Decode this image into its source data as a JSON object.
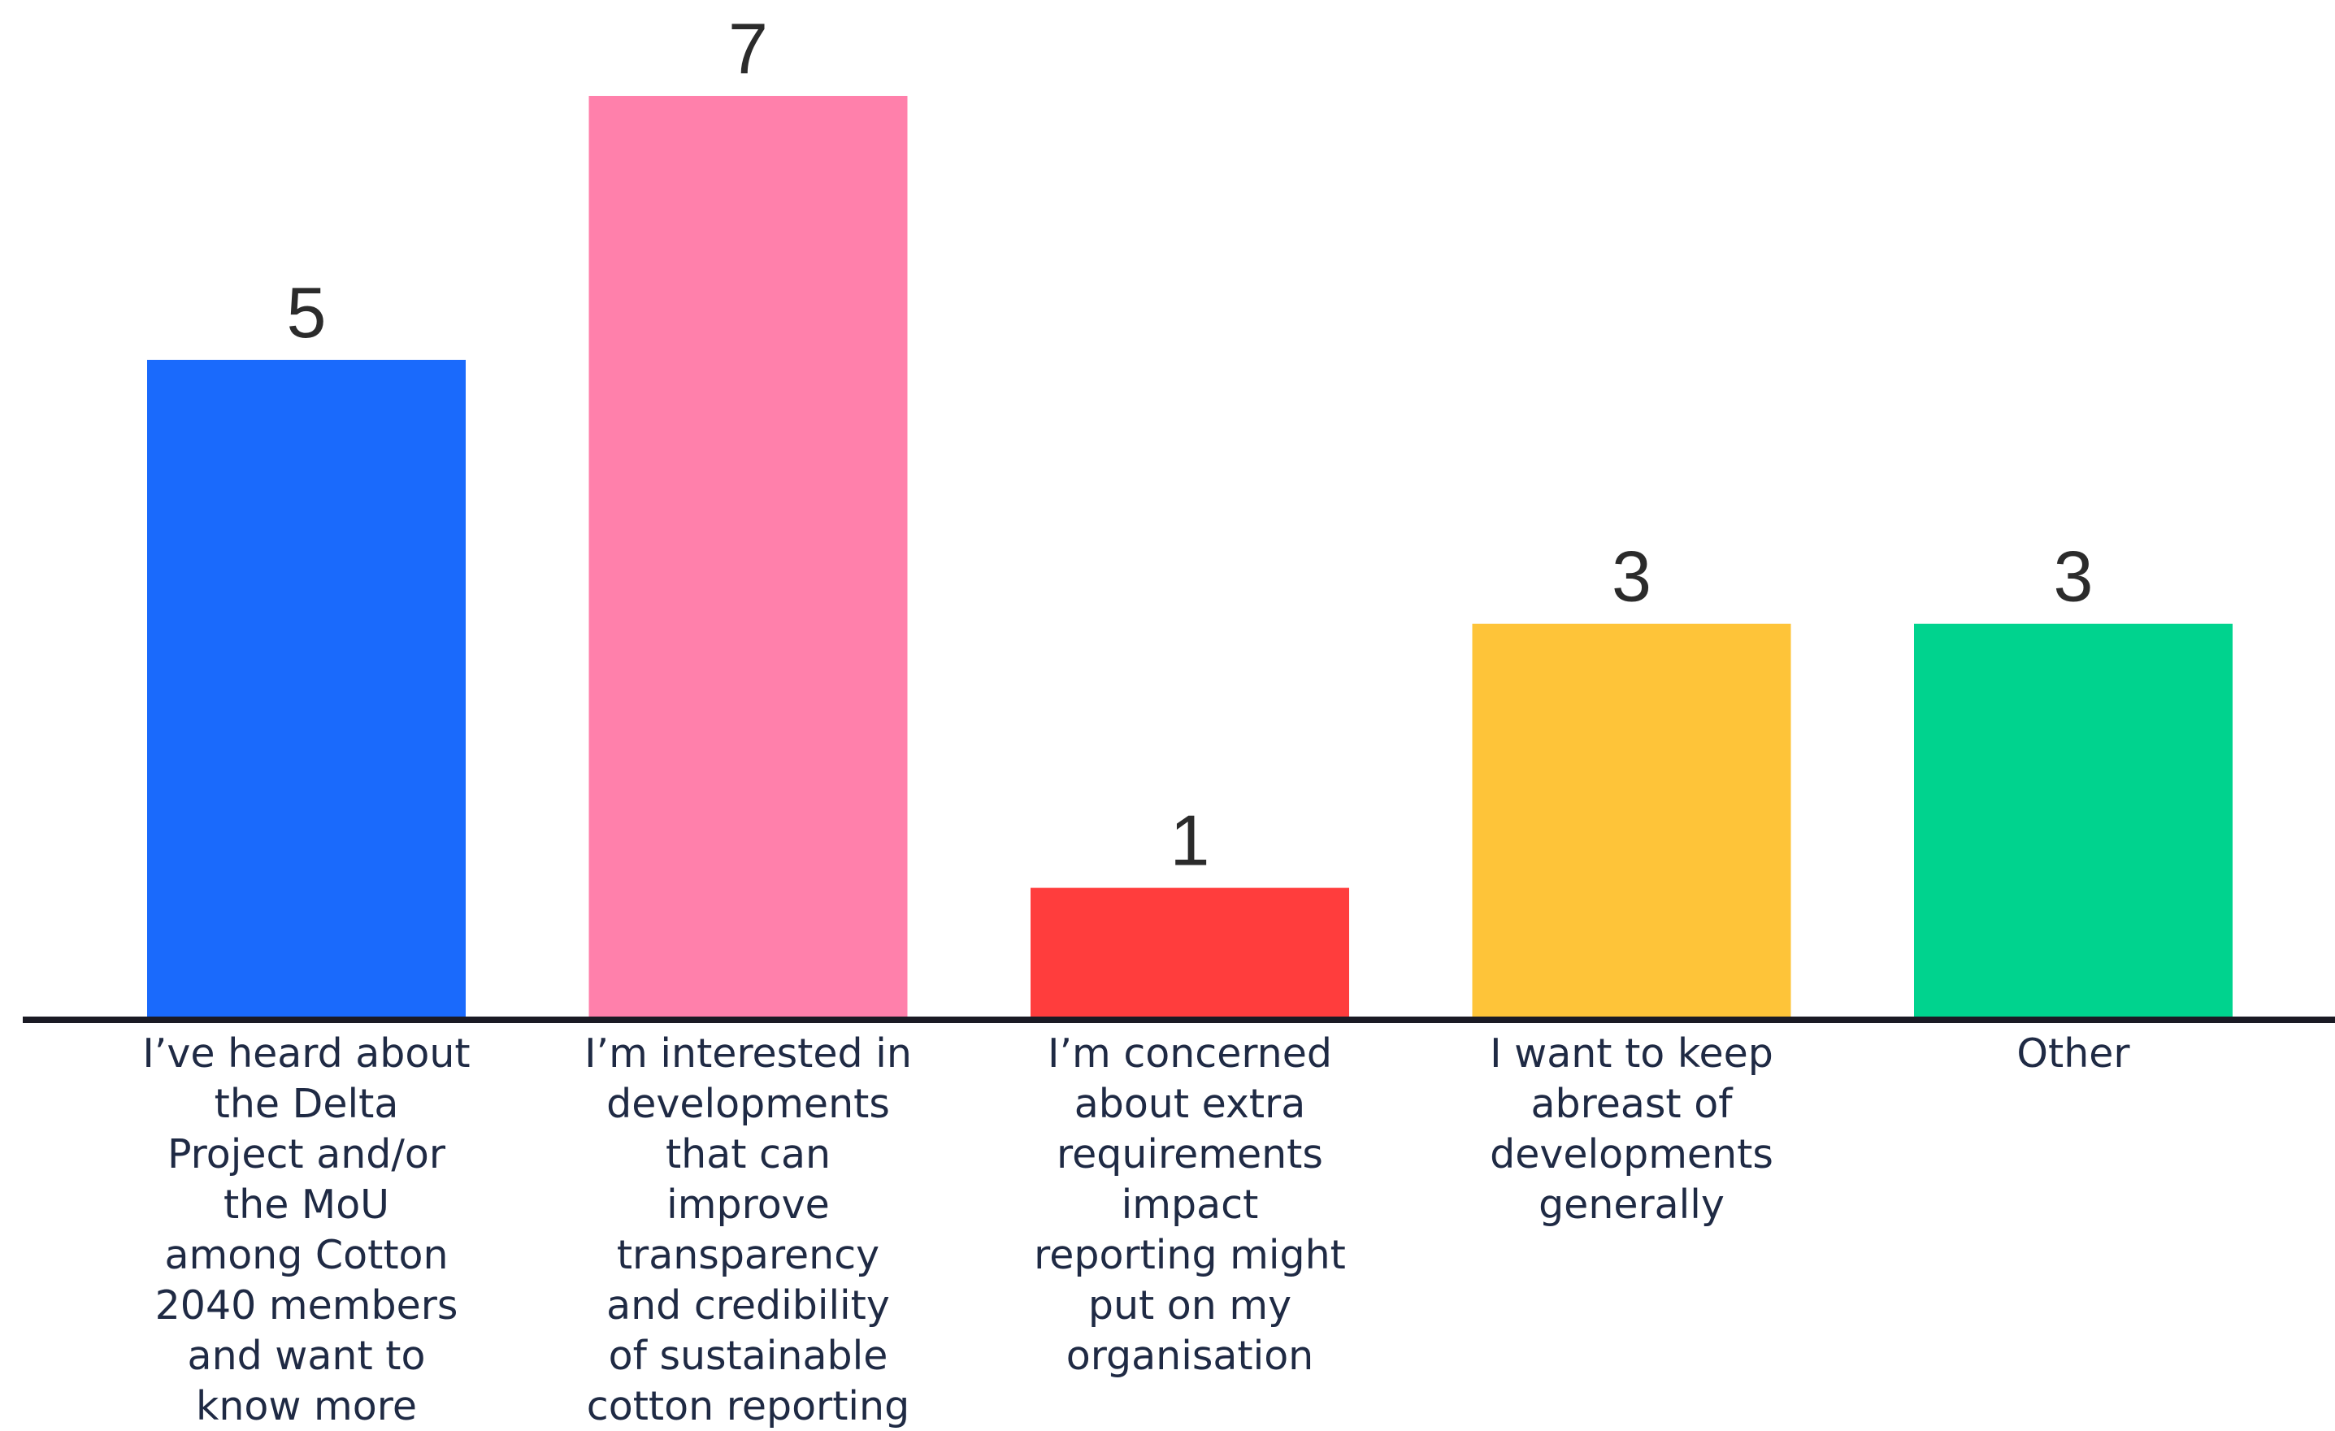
{
  "chart_data": {
    "type": "bar",
    "title": "",
    "xlabel": "",
    "ylabel": "",
    "ylim": [
      0,
      7
    ],
    "grid": false,
    "legend": "none",
    "categories": [
      "I’ve heard about the Delta Project and/or the MoU among Cotton 2040 members and want to know more",
      "I’m interested in developments that can improve transparency and credibility of sustainable cotton reporting",
      "I’m concerned about extra requirements impact reporting might put on my organisation",
      "I want to keep abreast of developments generally",
      "Other"
    ],
    "category_lines": [
      [
        "I’ve heard about",
        "the Delta",
        "Project and/or",
        "the MoU",
        "among Cotton",
        "2040 members",
        "and want to",
        "know more"
      ],
      [
        "I’m interested in",
        "developments",
        "that can",
        "improve",
        "transparency",
        "and credibility",
        "of sustainable",
        "cotton reporting"
      ],
      [
        "I’m concerned",
        "about extra",
        "requirements",
        "impact",
        "reporting might",
        "put on my",
        "organisation"
      ],
      [
        "I want to keep",
        "abreast of",
        "developments",
        "generally"
      ],
      [
        "Other"
      ]
    ],
    "values": [
      5,
      7,
      1,
      3,
      3
    ],
    "value_labels": [
      "5",
      "7",
      "1",
      "3",
      "3"
    ],
    "colors": [
      "#1a6afc",
      "#ff80ab",
      "#ff3d3d",
      "#fec439",
      "#00d38e"
    ],
    "baseline_color": "#1a1a24"
  }
}
